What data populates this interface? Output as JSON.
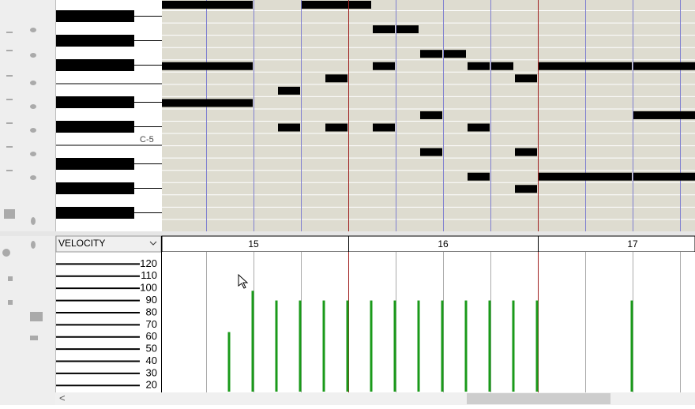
{
  "piano_roll": {
    "key_label": "C-5"
  },
  "ruler": {
    "measures": [
      "15",
      "16",
      "17"
    ]
  },
  "velocity_lane": {
    "label": "VELOCITY",
    "ylim": [
      15,
      130
    ],
    "yticks": [
      120,
      110,
      100,
      90,
      80,
      70,
      60,
      50,
      40,
      30,
      20
    ],
    "values": [
      64,
      98,
      90,
      90,
      90,
      90,
      90,
      90,
      90,
      90,
      90,
      90,
      90,
      90,
      90
    ],
    "color": "#1a9a1a"
  }
}
